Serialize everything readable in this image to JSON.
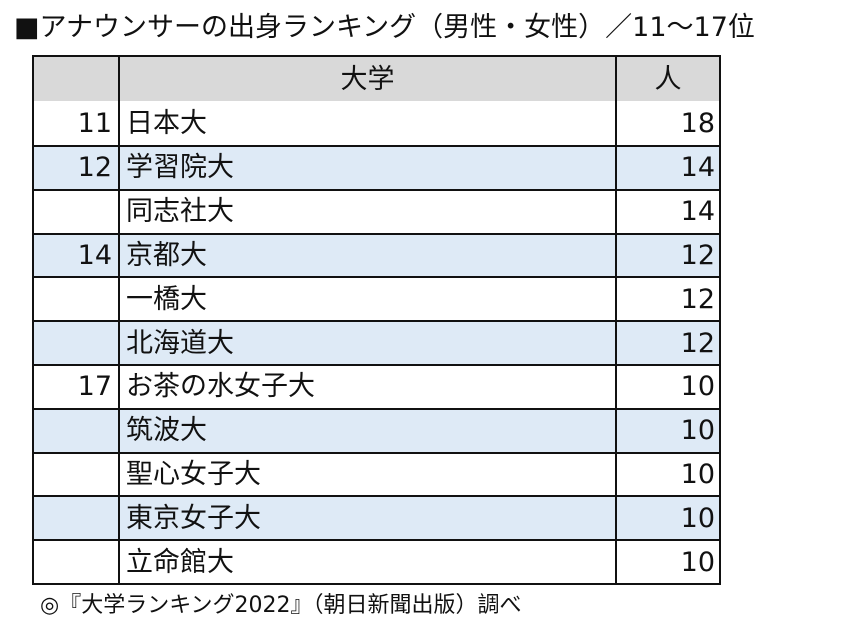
{
  "title": "■アナウンサーの出身ランキング（男性・女性）／11〜17位",
  "table": {
    "headers": {
      "rank": "",
      "name": "大学",
      "count": "人"
    },
    "rows": [
      {
        "rank": "11",
        "name": "日本大",
        "count": "18"
      },
      {
        "rank": "12",
        "name": "学習院大",
        "count": "14"
      },
      {
        "rank": "",
        "name": "同志社大",
        "count": "14"
      },
      {
        "rank": "14",
        "name": "京都大",
        "count": "12"
      },
      {
        "rank": "",
        "name": "一橋大",
        "count": "12"
      },
      {
        "rank": "",
        "name": "北海道大",
        "count": "12"
      },
      {
        "rank": "17",
        "name": "お茶の水女子大",
        "count": "10"
      },
      {
        "rank": "",
        "name": "筑波大",
        "count": "10"
      },
      {
        "rank": "",
        "name": "聖心女子大",
        "count": "10"
      },
      {
        "rank": "",
        "name": "東京女子大",
        "count": "10"
      },
      {
        "rank": "",
        "name": "立命館大",
        "count": "10"
      }
    ]
  },
  "footer": "◎『大学ランキング2022』（朝日新聞出版）調べ",
  "colors": {
    "header_bg": "#d9d9d9",
    "alt_row_bg": "#deeaf6",
    "border": "#111111"
  },
  "chart_data": {
    "type": "table",
    "title": "■アナウンサーの出身ランキング（男性・女性）／11〜17位",
    "columns": [
      "",
      "大学",
      "人"
    ],
    "rows": [
      [
        "11",
        "日本大",
        18
      ],
      [
        "12",
        "学習院大",
        14
      ],
      [
        "",
        "同志社大",
        14
      ],
      [
        "14",
        "京都大",
        12
      ],
      [
        "",
        "一橋大",
        12
      ],
      [
        "",
        "北海道大",
        12
      ],
      [
        "17",
        "お茶の水女子大",
        10
      ],
      [
        "",
        "筑波大",
        10
      ],
      [
        "",
        "聖心女子大",
        10
      ],
      [
        "",
        "東京女子大",
        10
      ],
      [
        "",
        "立命館大",
        10
      ]
    ],
    "source": "◎『大学ランキング2022』（朝日新聞出版）調べ"
  }
}
